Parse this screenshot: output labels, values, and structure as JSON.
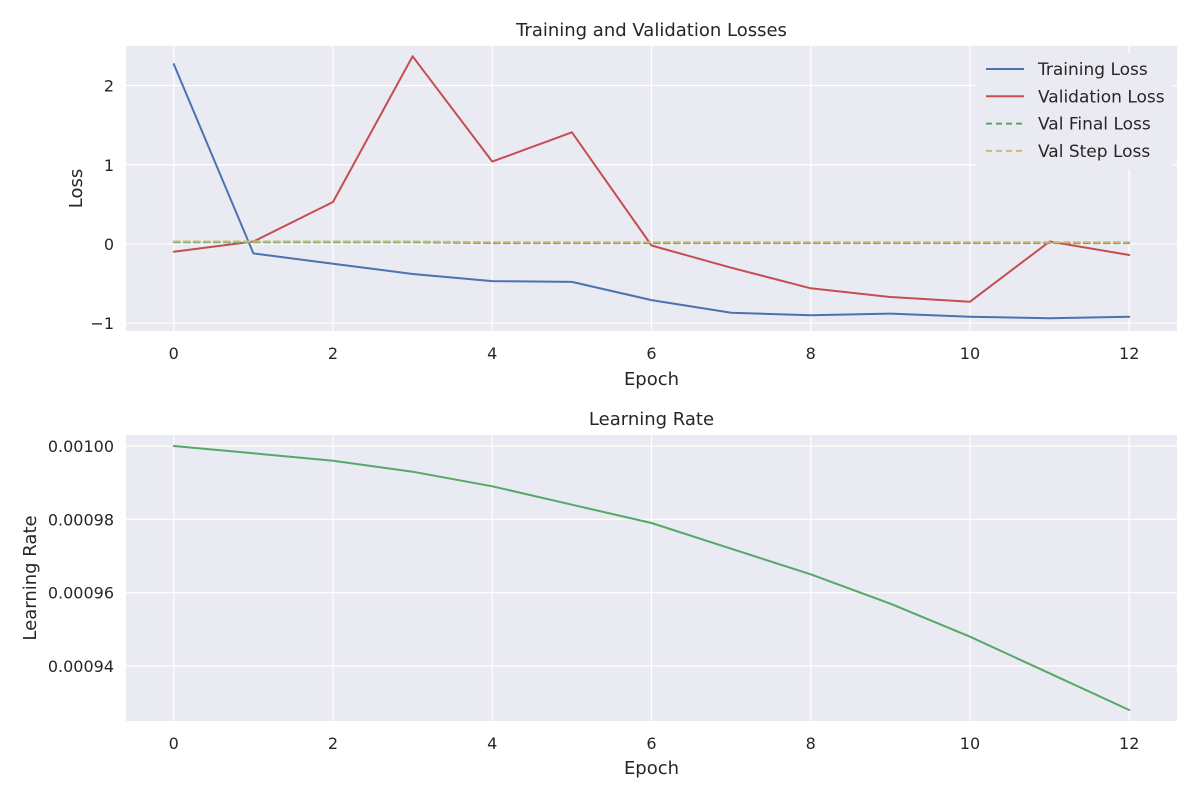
{
  "colors": {
    "training": "#4c72b0",
    "validation": "#c44e52",
    "val_final": "#55a868",
    "val_step": "#ccb974",
    "learning_rate": "#55a868"
  },
  "chart_data": [
    {
      "type": "line",
      "title": "Training and Validation Losses",
      "xlabel": "Epoch",
      "ylabel": "Loss",
      "xlim": [
        -0.6,
        12.6
      ],
      "ylim": [
        -1.1,
        2.5
      ],
      "xticks": [
        0,
        2,
        4,
        6,
        8,
        10,
        12
      ],
      "xtick_labels": [
        "0",
        "2",
        "4",
        "6",
        "8",
        "10",
        "12"
      ],
      "yticks": [
        -1,
        0,
        1,
        2
      ],
      "ytick_labels": [
        "−1",
        "0",
        "1",
        "2"
      ],
      "grid": true,
      "legend": "top-right",
      "x": [
        0,
        1,
        2,
        3,
        4,
        5,
        6,
        7,
        8,
        9,
        10,
        11,
        12
      ],
      "series": [
        {
          "name": "Training Loss",
          "color_key": "training",
          "style": "solid",
          "values": [
            2.27,
            -0.12,
            -0.25,
            -0.38,
            -0.47,
            -0.48,
            -0.71,
            -0.87,
            -0.9,
            -0.88,
            -0.92,
            -0.94,
            -0.92
          ]
        },
        {
          "name": "Validation Loss",
          "color_key": "validation",
          "style": "solid",
          "values": [
            -0.1,
            0.03,
            0.53,
            2.37,
            1.04,
            1.41,
            -0.02,
            -0.3,
            -0.56,
            -0.67,
            -0.73,
            0.03,
            -0.14
          ]
        },
        {
          "name": "Val Final Loss",
          "color_key": "val_final",
          "style": "dashed",
          "values": [
            0.02,
            0.02,
            0.02,
            0.02,
            0.01,
            0.01,
            0.01,
            0.01,
            0.01,
            0.01,
            0.01,
            0.01,
            0.01
          ]
        },
        {
          "name": "Val Step Loss",
          "color_key": "val_step",
          "style": "dashed",
          "values": [
            0.03,
            0.03,
            0.03,
            0.03,
            0.02,
            0.02,
            0.02,
            0.02,
            0.02,
            0.02,
            0.02,
            0.02,
            0.02
          ]
        }
      ]
    },
    {
      "type": "line",
      "title": "Learning Rate",
      "xlabel": "Epoch",
      "ylabel": "Learning Rate",
      "xlim": [
        -0.6,
        12.6
      ],
      "ylim": [
        0.000925,
        0.001003
      ],
      "xticks": [
        0,
        2,
        4,
        6,
        8,
        10,
        12
      ],
      "xtick_labels": [
        "0",
        "2",
        "4",
        "6",
        "8",
        "10",
        "12"
      ],
      "yticks": [
        0.00094,
        0.00096,
        0.00098,
        0.001
      ],
      "ytick_labels": [
        "0.00094",
        "0.00096",
        "0.00098",
        "0.00100"
      ],
      "grid": true,
      "legend": "none",
      "x": [
        0,
        1,
        2,
        3,
        4,
        5,
        6,
        7,
        8,
        9,
        10,
        11,
        12
      ],
      "series": [
        {
          "color_key": "learning_rate",
          "style": "solid",
          "values": [
            0.001,
            0.000998,
            0.000996,
            0.000993,
            0.000989,
            0.000984,
            0.000979,
            0.000972,
            0.000965,
            0.000957,
            0.000948,
            0.000938,
            0.000928
          ]
        }
      ]
    }
  ]
}
